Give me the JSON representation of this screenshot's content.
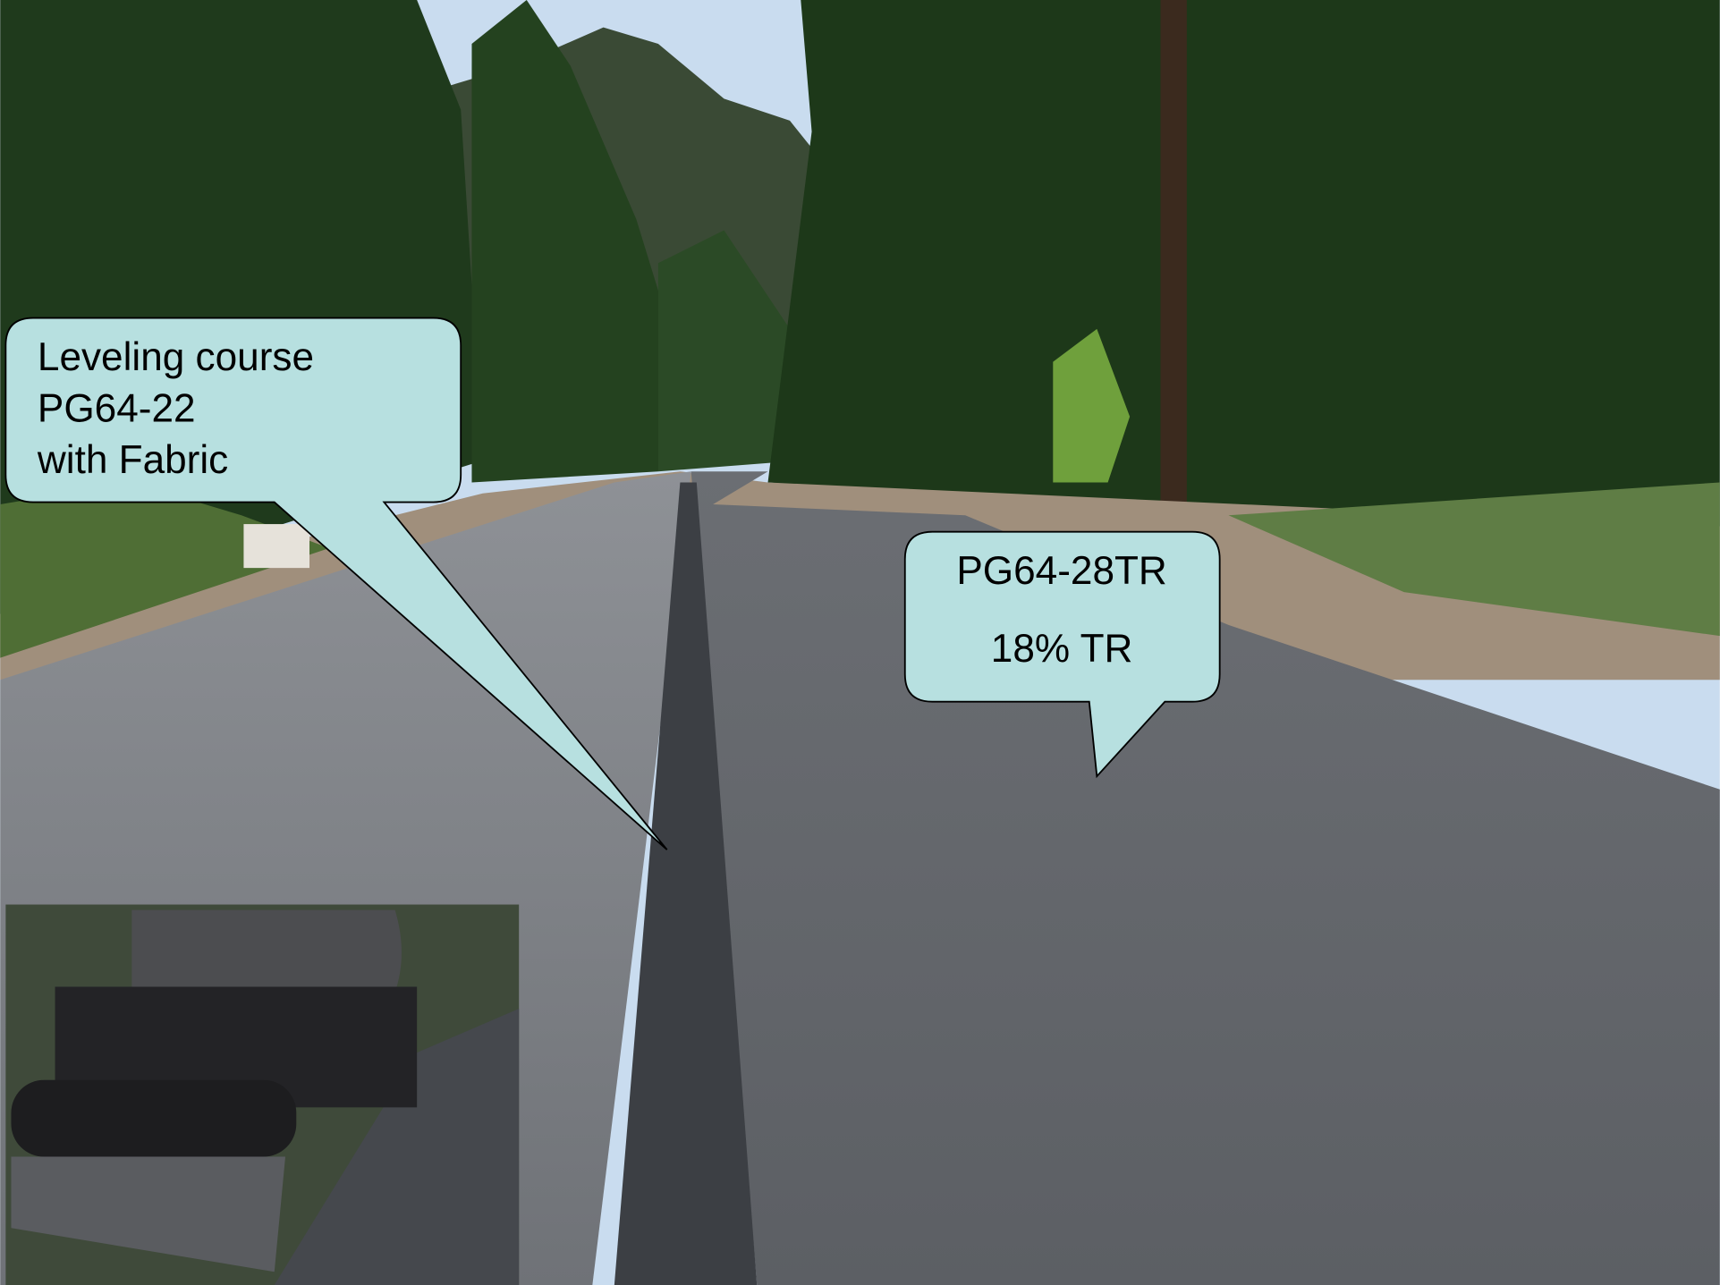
{
  "callouts": [
    {
      "lines": [
        "Leveling course",
        "PG64-22",
        "with Fabric"
      ]
    },
    {
      "lines": [
        "PG64-28TR",
        "18% TR"
      ]
    }
  ]
}
